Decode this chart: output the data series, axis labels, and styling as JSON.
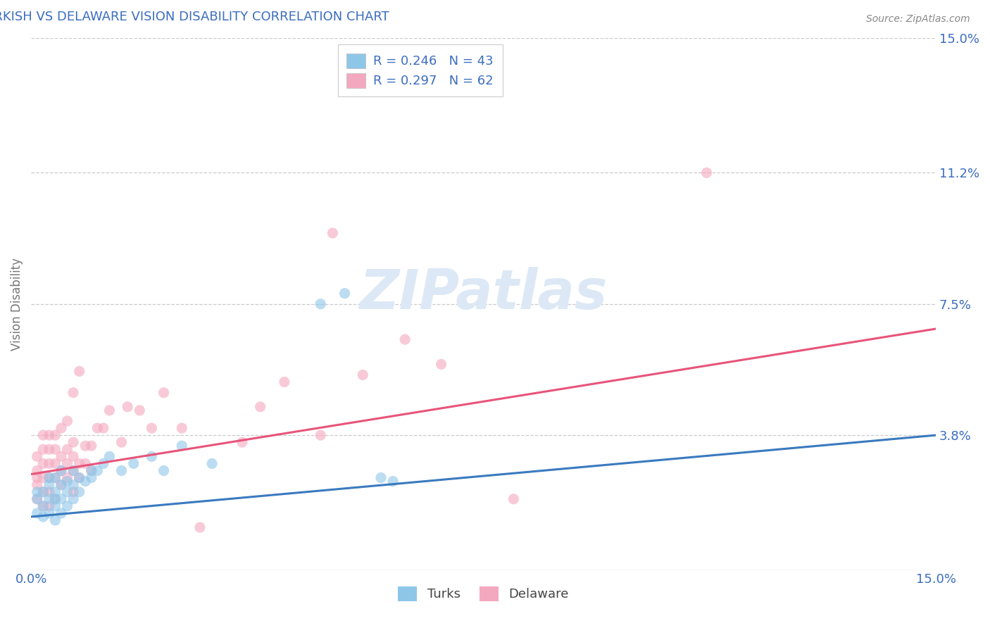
{
  "title": "TURKISH VS DELAWARE VISION DISABILITY CORRELATION CHART",
  "source": "Source: ZipAtlas.com",
  "ylabel": "Vision Disability",
  "xmin": 0.0,
  "xmax": 0.15,
  "ymin": 0.0,
  "ymax": 0.15,
  "right_ytick_labels": [
    "15.0%",
    "11.2%",
    "7.5%",
    "3.8%"
  ],
  "right_ytick_values": [
    0.15,
    0.112,
    0.075,
    0.038
  ],
  "legend_r1": "R = 0.246",
  "legend_n1": "N = 43",
  "legend_r2": "R = 0.297",
  "legend_n2": "N = 62",
  "color_turks": "#8ec6e8",
  "color_delaware": "#f4a8bf",
  "color_turks_line": "#3a7abf",
  "color_delaware_line": "#e8547a",
  "title_color": "#3c6dbf",
  "axis_label_color": "#3c6dbf",
  "source_color": "#888888",
  "watermark_text": "ZIPatlas",
  "watermark_color": "#dce8f5",
  "turks_line_x0": 0.0,
  "turks_line_y0": 0.015,
  "turks_line_x1": 0.15,
  "turks_line_y1": 0.038,
  "delaware_line_x0": 0.0,
  "delaware_line_y0": 0.027,
  "delaware_line_x1": 0.15,
  "delaware_line_y1": 0.068,
  "turks_x": [
    0.001,
    0.001,
    0.001,
    0.002,
    0.002,
    0.002,
    0.003,
    0.003,
    0.003,
    0.003,
    0.004,
    0.004,
    0.004,
    0.004,
    0.004,
    0.005,
    0.005,
    0.005,
    0.005,
    0.006,
    0.006,
    0.006,
    0.007,
    0.007,
    0.007,
    0.008,
    0.008,
    0.009,
    0.01,
    0.01,
    0.011,
    0.012,
    0.013,
    0.015,
    0.017,
    0.02,
    0.022,
    0.025,
    0.03,
    0.048,
    0.052,
    0.058,
    0.06
  ],
  "turks_y": [
    0.016,
    0.02,
    0.022,
    0.015,
    0.018,
    0.022,
    0.016,
    0.02,
    0.024,
    0.026,
    0.014,
    0.018,
    0.02,
    0.022,
    0.026,
    0.016,
    0.02,
    0.024,
    0.028,
    0.018,
    0.022,
    0.025,
    0.02,
    0.024,
    0.028,
    0.022,
    0.026,
    0.025,
    0.026,
    0.028,
    0.028,
    0.03,
    0.032,
    0.028,
    0.03,
    0.032,
    0.028,
    0.035,
    0.03,
    0.075,
    0.078,
    0.026,
    0.025
  ],
  "delaware_x": [
    0.001,
    0.001,
    0.001,
    0.001,
    0.001,
    0.002,
    0.002,
    0.002,
    0.002,
    0.002,
    0.002,
    0.003,
    0.003,
    0.003,
    0.003,
    0.003,
    0.003,
    0.004,
    0.004,
    0.004,
    0.004,
    0.004,
    0.005,
    0.005,
    0.005,
    0.005,
    0.006,
    0.006,
    0.006,
    0.006,
    0.007,
    0.007,
    0.007,
    0.007,
    0.007,
    0.008,
    0.008,
    0.008,
    0.009,
    0.009,
    0.01,
    0.01,
    0.011,
    0.012,
    0.013,
    0.015,
    0.016,
    0.018,
    0.02,
    0.022,
    0.025,
    0.028,
    0.035,
    0.038,
    0.042,
    0.048,
    0.05,
    0.055,
    0.062,
    0.068,
    0.08,
    0.112
  ],
  "delaware_y": [
    0.02,
    0.024,
    0.026,
    0.028,
    0.032,
    0.018,
    0.022,
    0.026,
    0.03,
    0.034,
    0.038,
    0.018,
    0.022,
    0.026,
    0.03,
    0.034,
    0.038,
    0.02,
    0.026,
    0.03,
    0.034,
    0.038,
    0.024,
    0.028,
    0.032,
    0.04,
    0.026,
    0.03,
    0.034,
    0.042,
    0.022,
    0.028,
    0.032,
    0.036,
    0.05,
    0.026,
    0.03,
    0.056,
    0.03,
    0.035,
    0.028,
    0.035,
    0.04,
    0.04,
    0.045,
    0.036,
    0.046,
    0.045,
    0.04,
    0.05,
    0.04,
    0.012,
    0.036,
    0.046,
    0.053,
    0.038,
    0.095,
    0.055,
    0.065,
    0.058,
    0.02,
    0.112
  ]
}
